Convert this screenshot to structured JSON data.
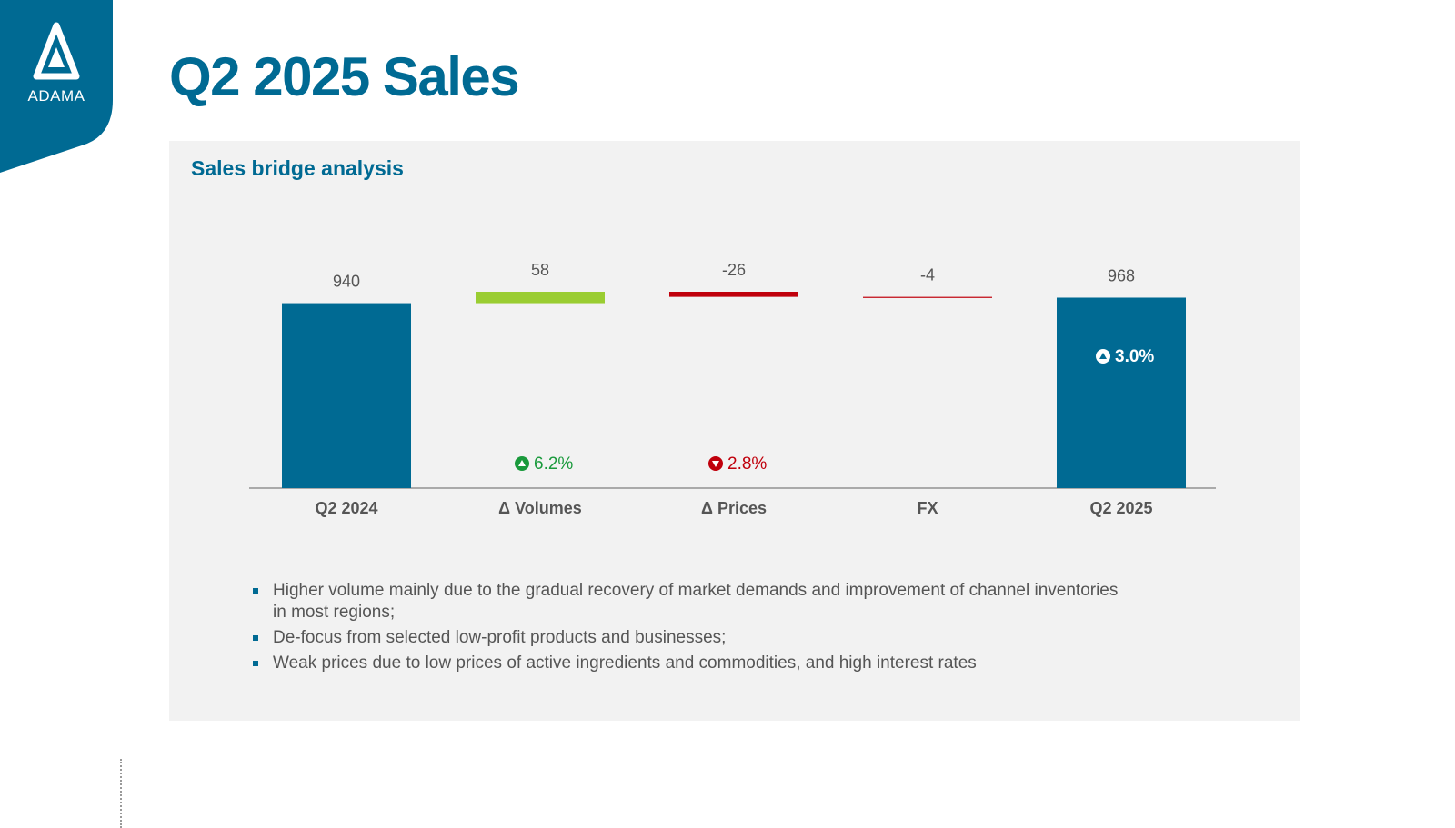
{
  "brand": {
    "logo_text": "ADAMA",
    "color": "#006a93"
  },
  "page": {
    "title": "Q2 2025 Sales",
    "panel_title": "Sales bridge analysis"
  },
  "chart_data": {
    "type": "waterfall",
    "categories": [
      "Q2 2024",
      "Δ Volumes",
      "Δ Prices",
      "FX",
      "Q2 2025"
    ],
    "values": [
      940,
      58,
      -26,
      -4,
      968
    ],
    "kinds": [
      "total",
      "delta",
      "delta",
      "delta",
      "total"
    ],
    "value_labels": [
      "940",
      "58",
      "-26",
      "-4",
      "968"
    ],
    "colors": {
      "total": "#006a93",
      "increase": "#9acd32",
      "decrease": "#c0000c",
      "growth_up": "#1a9a3c",
      "growth_down": "#c0000c"
    },
    "growth": [
      {
        "category": "Δ Volumes",
        "label": "6.2%",
        "direction": "up"
      },
      {
        "category": "Δ Prices",
        "label": "2.8%",
        "direction": "down"
      },
      {
        "category": "Q2 2025",
        "label": "3.0%",
        "direction": "up"
      }
    ],
    "title": "",
    "xlabel": "",
    "ylabel": ""
  },
  "bullets": [
    "Higher volume mainly due to the gradual recovery of market demands and improvement of channel inventories in most regions;",
    "De-focus from selected low-profit products and businesses;",
    "Weak prices due to low prices of active ingredients and commodities, and high interest rates"
  ]
}
